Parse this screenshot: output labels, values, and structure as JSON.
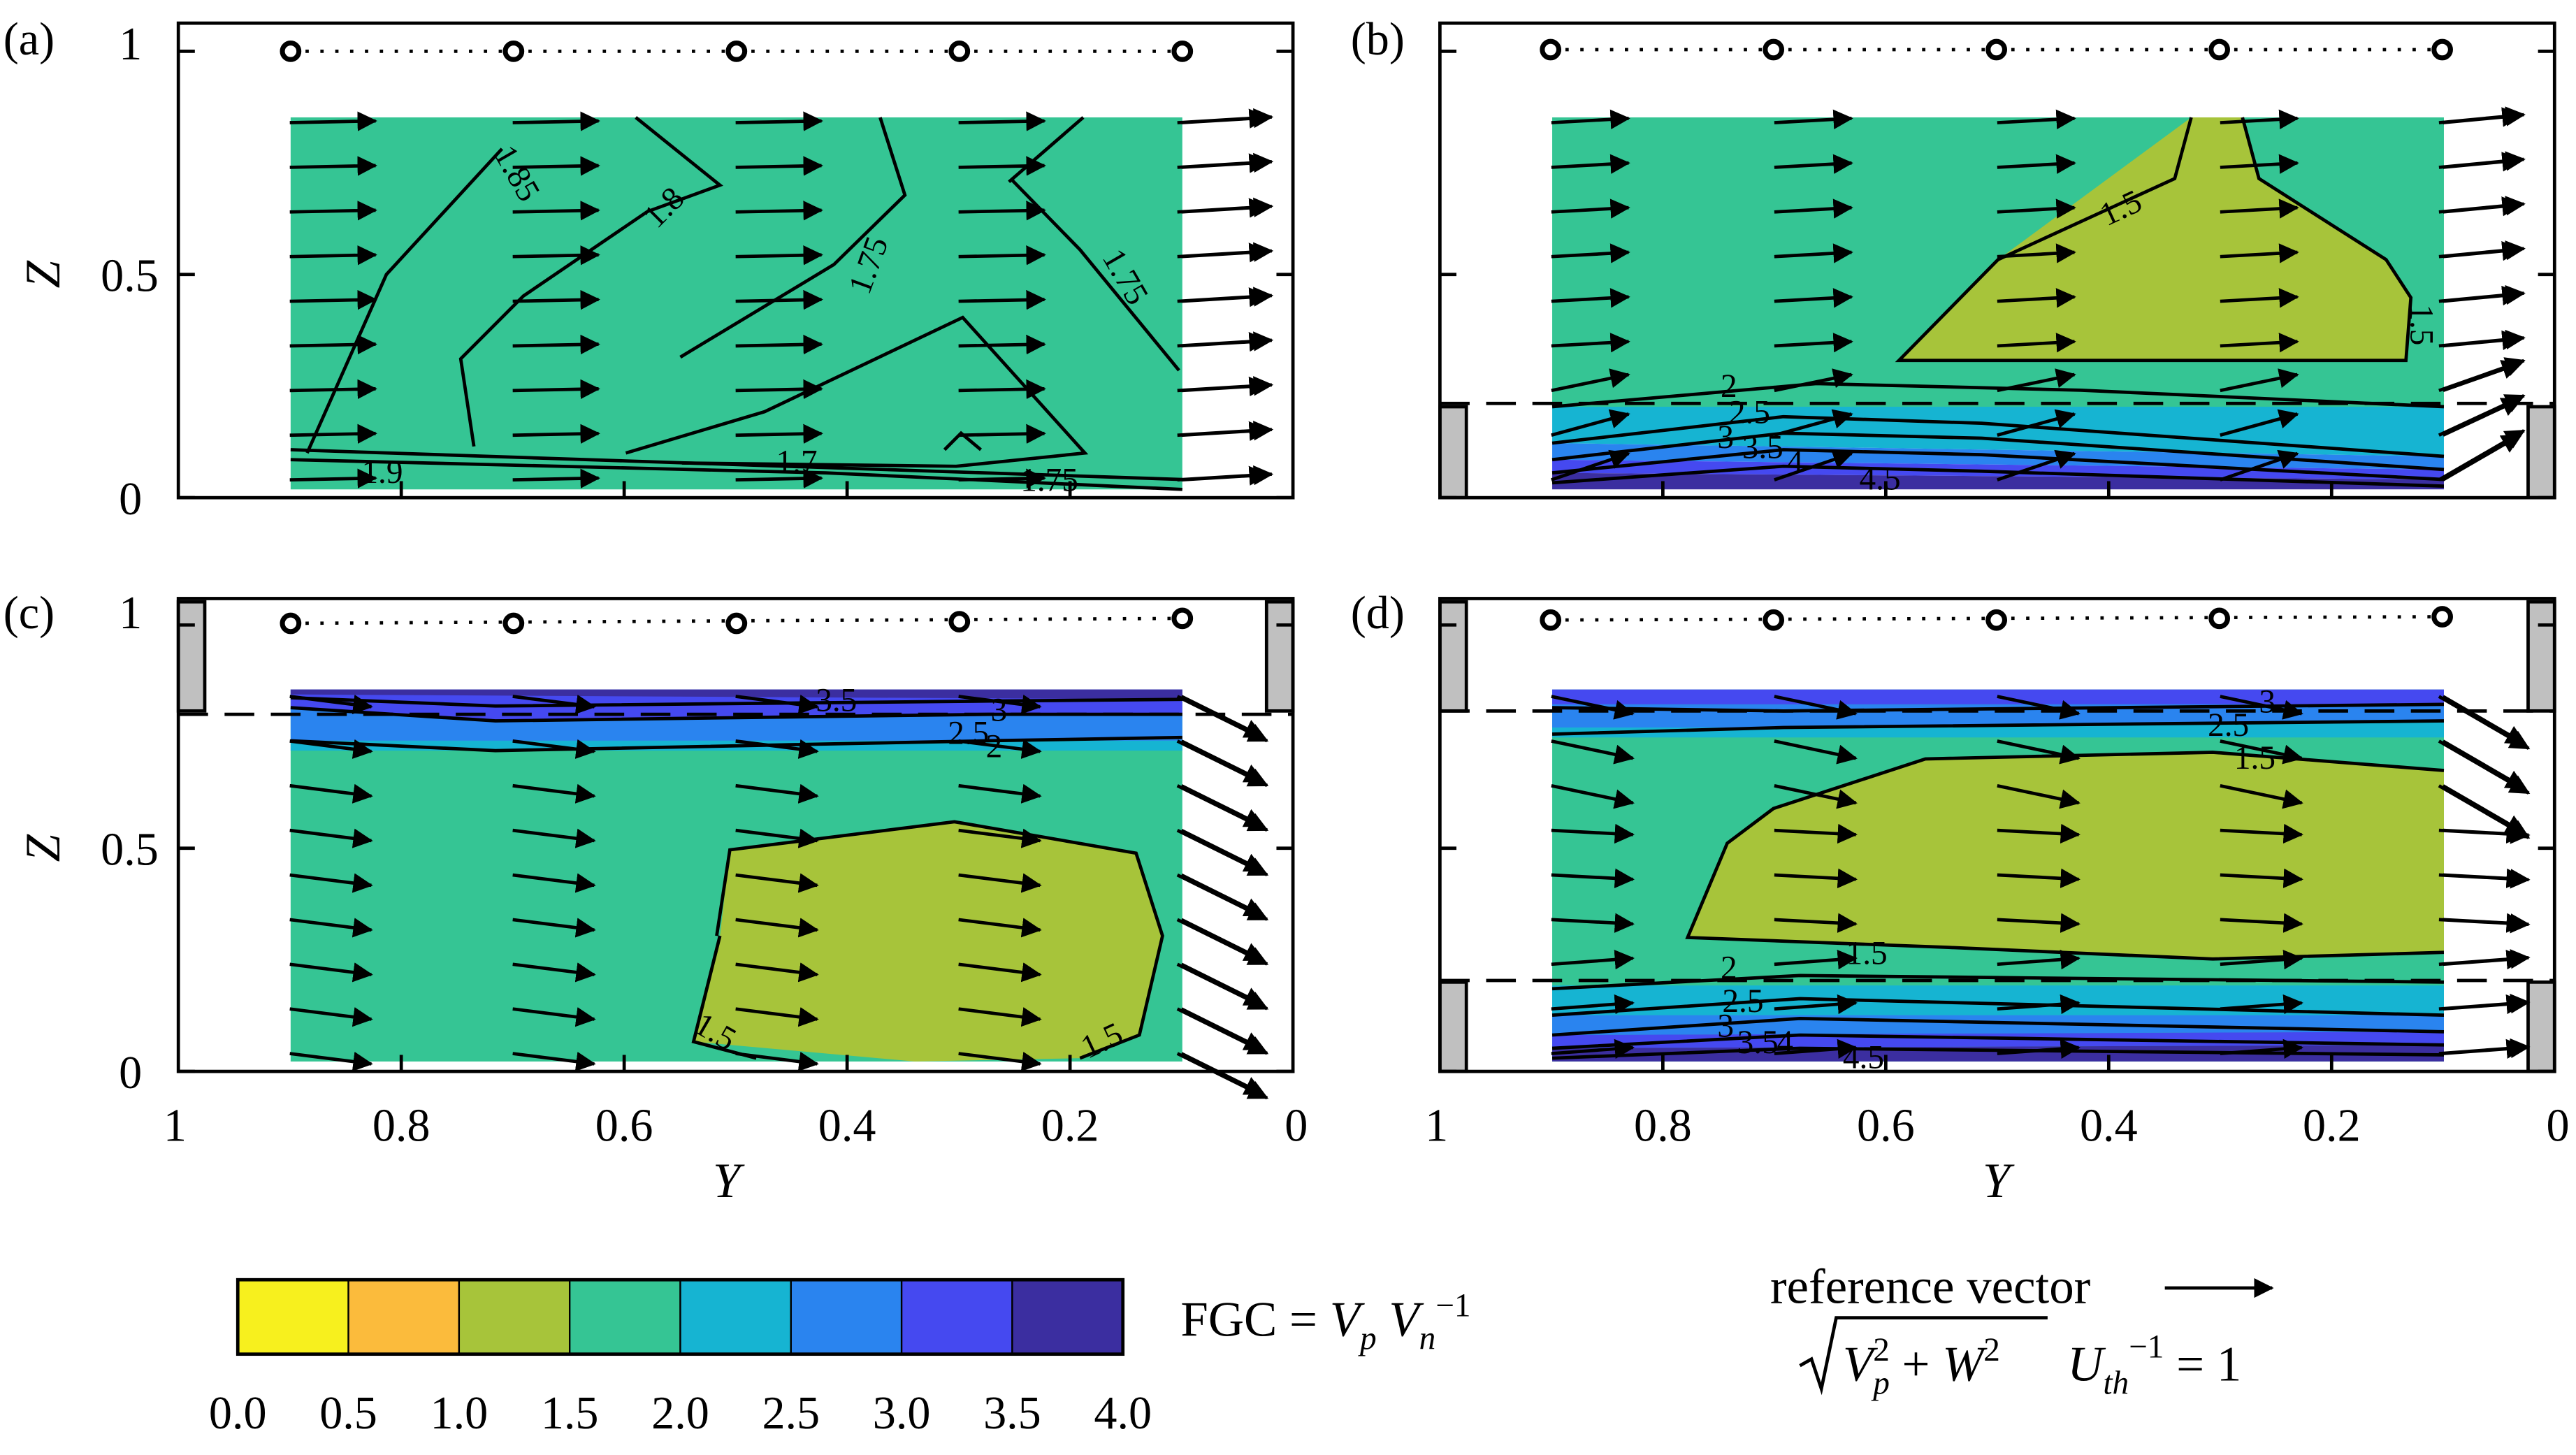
{
  "chart_data": [
    {
      "type": "contour",
      "panel_label": "(a)",
      "xlabel": "",
      "ylabel": "Z",
      "xlim": [
        1,
        0
      ],
      "ylim": [
        0,
        1
      ],
      "yticks": [
        "0",
        "0.5",
        "1"
      ],
      "circles": [
        0.9,
        0.7,
        0.5,
        0.3,
        0.1
      ],
      "dotted_line_z": 0.97,
      "contour_labels": [
        "1.85",
        "1.8",
        "1.75",
        "1.75",
        "1.9",
        "1.7",
        "1.75"
      ],
      "vectors_rows": [
        0.04,
        0.14,
        0.24,
        0.34,
        0.44,
        0.54,
        0.64,
        0.74,
        0.84
      ],
      "vectors_cols": [
        0.9,
        0.7,
        0.5,
        0.3,
        0.1,
        0.0
      ]
    },
    {
      "type": "contour",
      "panel_label": "(b)",
      "xlabel": "",
      "ylabel": "",
      "xlim": [
        1,
        0
      ],
      "ylim": [
        0,
        1
      ],
      "circles": [
        0.9,
        0.7,
        0.5,
        0.3,
        0.1
      ],
      "dashed_lines_z": [
        0.21
      ],
      "walls": "bottom",
      "contour_labels": [
        "1.5",
        "1.5",
        "2",
        "2.5",
        "3",
        "3.5",
        "4",
        "4.5"
      ]
    },
    {
      "type": "contour",
      "panel_label": "(c)",
      "xlabel": "Y",
      "ylabel": "Z",
      "xlim": [
        1,
        0
      ],
      "ylim": [
        0,
        1
      ],
      "xticks": [
        "1",
        "0.8",
        "0.6",
        "0.4",
        "0.2",
        "0"
      ],
      "yticks": [
        "0",
        "0.5",
        "1"
      ],
      "circles": [
        0.9,
        0.7,
        0.5,
        0.3,
        0.1
      ],
      "dashed_lines_z": [
        0.79
      ],
      "walls": "top",
      "contour_labels": [
        "3.5",
        "3",
        "2.5",
        "2",
        "1.5",
        "1.5"
      ]
    },
    {
      "type": "contour",
      "panel_label": "(d)",
      "xlabel": "Y",
      "ylabel": "",
      "xlim": [
        1,
        0
      ],
      "ylim": [
        0,
        1
      ],
      "xticks": [
        "1",
        "0.8",
        "0.6",
        "0.4",
        "0.2",
        "0"
      ],
      "circles": [
        0.9,
        0.7,
        0.5,
        0.3,
        0.1
      ],
      "dashed_lines_z": [
        0.79,
        0.21
      ],
      "walls": "both",
      "contour_labels": [
        "3",
        "2.5",
        "1.5",
        "1.5",
        "2",
        "2.5",
        "3",
        "3.5",
        "4",
        "4.5"
      ]
    }
  ],
  "colorbar": {
    "bins": [
      {
        "range": [
          0.0,
          0.5
        ],
        "color": "#f7f01e"
      },
      {
        "range": [
          0.5,
          1.0
        ],
        "color": "#fbbb3c"
      },
      {
        "range": [
          1.0,
          1.5
        ],
        "color": "#a7c43a"
      },
      {
        "range": [
          1.5,
          2.0
        ],
        "color": "#35c594"
      },
      {
        "range": [
          2.0,
          2.5
        ],
        "color": "#16b4d2"
      },
      {
        "range": [
          2.5,
          3.0
        ],
        "color": "#2a84ef"
      },
      {
        "range": [
          3.0,
          3.5
        ],
        "color": "#4549f0"
      },
      {
        "range": [
          3.5,
          4.0
        ],
        "color": "#3b2ea0"
      }
    ],
    "tick_labels": [
      "0.0",
      "0.5",
      "1.0",
      "1.5",
      "2.0",
      "2.5",
      "3.0",
      "3.5",
      "4.0"
    ],
    "label": "FGC = V_p V_n^{−1}"
  },
  "reference_vector": {
    "title": "reference vector",
    "formula": "sqrt(V_p^2 + W^2) U_th^{−1} = 1"
  }
}
